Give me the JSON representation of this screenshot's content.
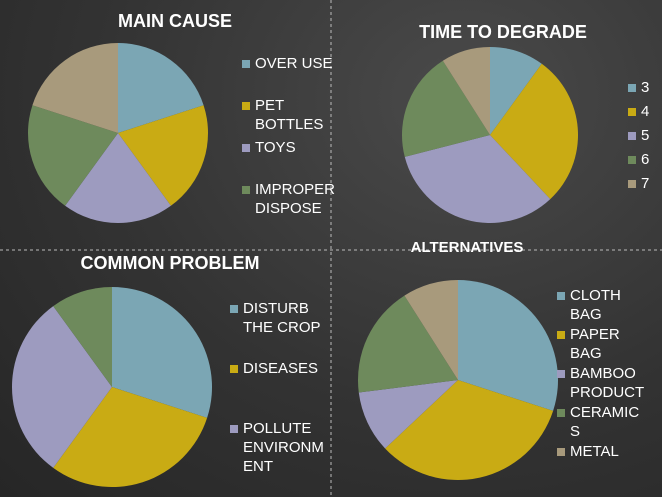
{
  "chart_data": [
    {
      "type": "pie",
      "title": "MAIN CAUSE",
      "categories": [
        "OVER USE",
        "PET BOTTLES",
        "TOYS",
        "IMPROPER DISPOSE",
        null
      ],
      "values": [
        20,
        20,
        20,
        20,
        20
      ],
      "colors": [
        "#7ba6b4",
        "#c9ab14",
        "#9d9bbf",
        "#6e8a5c",
        "#a89a7c"
      ]
    },
    {
      "type": "pie",
      "title": "TIME TO DEGRADE",
      "categories": [
        "3",
        "4",
        "5",
        "6",
        "7"
      ],
      "values": [
        10,
        28,
        33,
        20,
        9
      ],
      "colors": [
        "#7ba6b4",
        "#c9ab14",
        "#9d9bbf",
        "#6e8a5c",
        "#a89a7c"
      ]
    },
    {
      "type": "pie",
      "title": "COMMON PROBLEM",
      "categories": [
        "DISTURB THE CROP",
        "DISEASES",
        "POLLUTE ENVIRONMENT",
        null
      ],
      "values": [
        30,
        30,
        30,
        10
      ],
      "colors": [
        "#7ba6b4",
        "#c9ab14",
        "#9d9bbf",
        "#6e8a5c"
      ]
    },
    {
      "type": "pie",
      "title": "ALTERNATIVES",
      "categories": [
        "CLOTH BAG",
        "PAPER BAG",
        "BAMBOO PRODUCT",
        "CERAMICS",
        "METAL"
      ],
      "values": [
        30,
        33,
        10,
        18,
        9
      ],
      "colors": [
        "#7ba6b4",
        "#c9ab14",
        "#9d9bbf",
        "#6e8a5c",
        "#a89a7c"
      ]
    }
  ]
}
